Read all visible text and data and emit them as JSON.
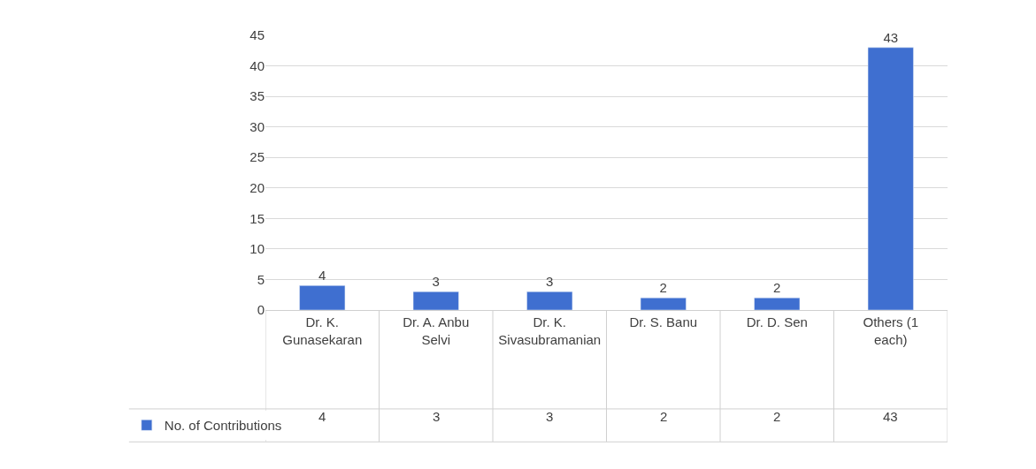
{
  "chart_data": {
    "type": "bar",
    "categories": [
      "Dr. K. Gunasekaran",
      "Dr. A. Anbu Selvi",
      "Dr. K. Sivasubramanian",
      "Dr. S. Banu",
      "Dr. D. Sen",
      "Others (1 each)"
    ],
    "series": [
      {
        "name": "No. of Contributions",
        "color": "#3f6fd0",
        "values": [
          4,
          3,
          3,
          2,
          2,
          43
        ]
      }
    ],
    "annotations": [
      "4",
      "3",
      "3",
      "2",
      "2",
      "43"
    ],
    "ylim": [
      0,
      45
    ],
    "yticks": [
      0,
      5,
      10,
      15,
      20,
      25,
      30,
      35,
      40,
      45
    ],
    "grid": "y",
    "legend": "bottom",
    "data_labels": true
  }
}
